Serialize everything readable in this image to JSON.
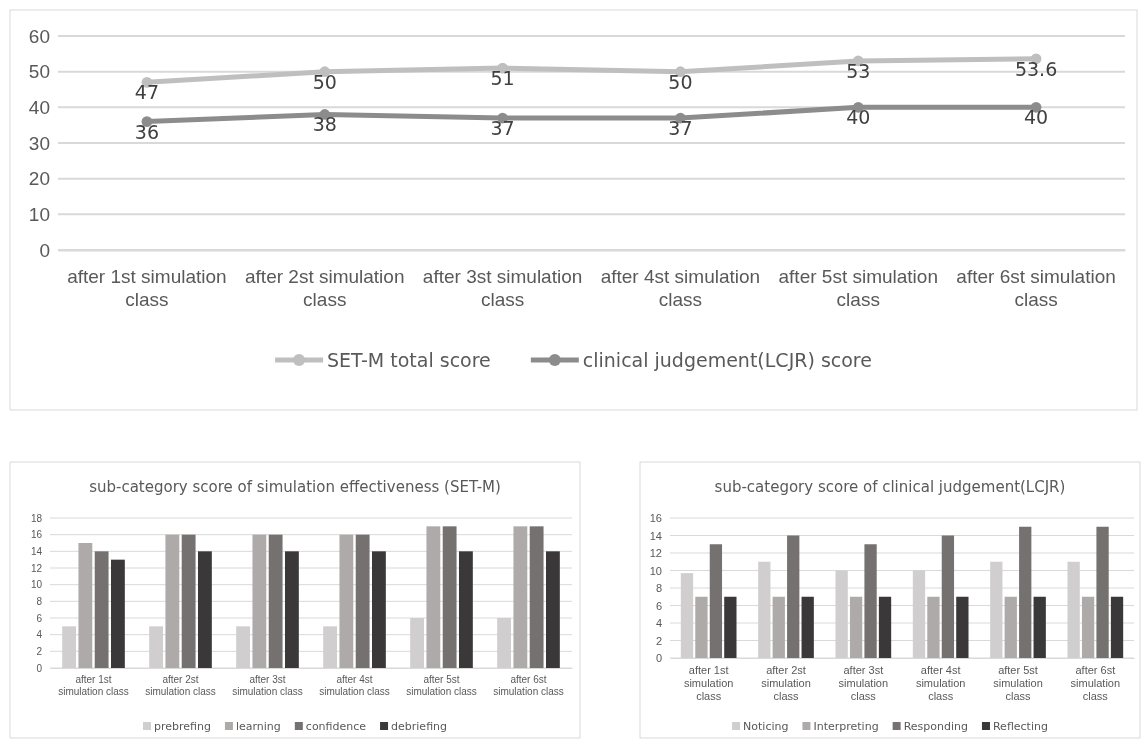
{
  "chart_data": [
    {
      "type": "line",
      "categories": [
        "after 1st simulation class",
        "after 2st simulation class",
        "after 3st simulation class",
        "after 4st simulation class",
        "after 5st simulation class",
        "after 6st simulation class"
      ],
      "series": [
        {
          "name": "SET-M total score",
          "color": "#bfbfbf",
          "values": [
            47,
            50,
            51,
            50,
            53,
            53.6
          ]
        },
        {
          "name": "clinical judgement(LCJR) score",
          "color": "#8c8c8c",
          "values": [
            36,
            38,
            37,
            37,
            40,
            40
          ]
        }
      ],
      "ylim": [
        0,
        60
      ],
      "yticks": [
        0,
        10,
        20,
        30,
        40,
        50,
        60
      ],
      "grid": "y",
      "legend": "bottom",
      "data_labels": true,
      "marker": "circle",
      "line_style": "solid"
    },
    {
      "type": "bar",
      "title": "sub-category score of simulation effectiveness (SET-M)",
      "categories": [
        "after 1st simulation class",
        "after 2st simulation class",
        "after 3st simulation class",
        "after 4st simulation class",
        "after 5st simulation class",
        "after 6st simulation class"
      ],
      "series": [
        {
          "name": "prebrefing",
          "color": "#d0cece",
          "values": [
            5,
            5,
            5,
            5,
            6,
            6
          ]
        },
        {
          "name": "learning",
          "color": "#aeaaaa",
          "values": [
            15,
            16,
            16,
            16,
            17,
            17
          ]
        },
        {
          "name": "confidence",
          "color": "#767171",
          "values": [
            14,
            16,
            16,
            16,
            17,
            17
          ]
        },
        {
          "name": "debriefing",
          "color": "#3a3838",
          "values": [
            13,
            14,
            14,
            14,
            14,
            14
          ]
        }
      ],
      "ylim": [
        0,
        18
      ],
      "yticks": [
        0,
        2,
        4,
        6,
        8,
        10,
        12,
        14,
        16,
        18
      ],
      "grid": "y",
      "legend": "bottom"
    },
    {
      "type": "bar",
      "title": "sub-category score of clinical judgement(LCJR)",
      "categories": [
        "after 1st simulation class",
        "after 2st simulation class",
        "after 3st simulation class",
        "after 4st simulation class",
        "after 5st simulation class",
        "after 6st simulation class"
      ],
      "series": [
        {
          "name": "Noticing",
          "color": "#d0cece",
          "values": [
            9.7,
            11,
            10,
            10,
            11,
            11
          ]
        },
        {
          "name": "Interpreting",
          "color": "#aeaaaa",
          "values": [
            7,
            7,
            7,
            7,
            7,
            7
          ]
        },
        {
          "name": "Responding",
          "color": "#767171",
          "values": [
            13,
            14,
            13,
            14,
            15,
            15
          ]
        },
        {
          "name": "Reflecting",
          "color": "#3a3838",
          "values": [
            7,
            7,
            7,
            7,
            7,
            7
          ]
        }
      ],
      "ylim": [
        0,
        16
      ],
      "yticks": [
        0,
        2,
        4,
        6,
        8,
        10,
        12,
        14,
        16
      ],
      "grid": "y",
      "legend": "bottom"
    }
  ]
}
